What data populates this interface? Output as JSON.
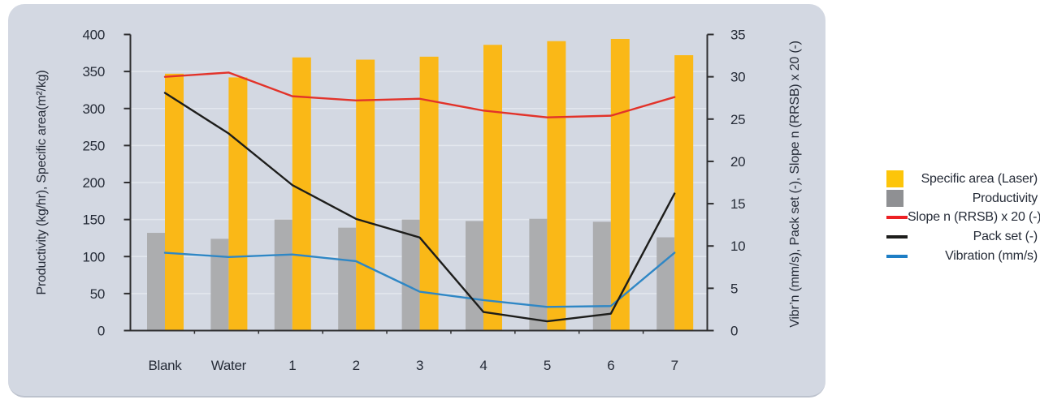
{
  "colors": {
    "page_bg": "#ffffff",
    "panel_bg": "#d3d8e2",
    "panel_edge": "#bcc2cd",
    "axis": "#2e2e30",
    "grid": "#e3e7ee",
    "text": "#262c38"
  },
  "chart_data": {
    "type": "bar+line",
    "categories": [
      "Blank",
      "Water",
      "1",
      "2",
      "3",
      "4",
      "5",
      "6",
      "7"
    ],
    "left_axis": {
      "label": "Productivity (kg/hr), Specific area(m²/kg)",
      "min": 0,
      "max": 400,
      "step": 50
    },
    "right_axis": {
      "label": "Vibr’n (mm/s), Pack set (-), Slope n (RRSB) x 20 (-)",
      "min": 0,
      "max": 35,
      "step": 5
    },
    "grid": "on",
    "legend_position": "right-outside",
    "series": [
      {
        "key": "specific-area",
        "name": "Specific area (Laser)",
        "type": "bar",
        "axis": "left",
        "color": "#fab817",
        "values": [
          347,
          342,
          369,
          366,
          370,
          386,
          391,
          394,
          372
        ]
      },
      {
        "key": "productivity",
        "name": "Productivity",
        "type": "bar",
        "axis": "left",
        "color": "#acadaf",
        "values": [
          132,
          124,
          150,
          139,
          150,
          148,
          151,
          147,
          126
        ]
      },
      {
        "key": "slope-n",
        "name": "Slope n (RRSB) x 20 (-)",
        "type": "line",
        "axis": "right",
        "color": "#e2332a",
        "values": [
          30.0,
          30.5,
          27.7,
          27.2,
          27.4,
          26.0,
          25.2,
          25.4,
          27.6
        ]
      },
      {
        "key": "pack-set",
        "name": "Pack set (-)",
        "type": "line",
        "axis": "right",
        "color": "#1d1d1b",
        "values": [
          28.1,
          23.3,
          17.2,
          13.2,
          11.0,
          2.2,
          1.1,
          2.0,
          16.2
        ]
      },
      {
        "key": "vibration",
        "name": "Vibration (mm/s)",
        "type": "line",
        "axis": "right",
        "color": "#2f87c5",
        "values": [
          9.2,
          8.7,
          9.0,
          8.2,
          4.6,
          3.6,
          2.8,
          2.9,
          9.2
        ]
      }
    ],
    "legend": {
      "items": [
        {
          "label": "Specific area (Laser)",
          "swatch": "square",
          "color": "#fdc50a"
        },
        {
          "label": "Productivity",
          "swatch": "square",
          "color": "#8f9093"
        },
        {
          "label": "Slope n (RRSB) x 20 (-)",
          "swatch": "line",
          "color": "#ed2024"
        },
        {
          "label": "Pack set (-)",
          "swatch": "line",
          "color": "#1d1d1b"
        },
        {
          "label": "Vibration (mm/s)",
          "swatch": "line",
          "color": "#1e7ec5"
        }
      ]
    }
  }
}
